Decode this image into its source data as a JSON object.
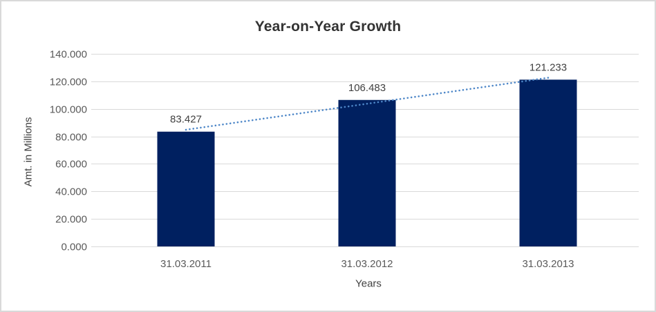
{
  "chart_data": {
    "type": "bar",
    "title": "Year-on-Year Growth",
    "xlabel": "Years",
    "ylabel": "Amt. in Millions",
    "categories": [
      "31.03.2011",
      "31.03.2012",
      "31.03.2013"
    ],
    "values": [
      83.427,
      106.483,
      121.233
    ],
    "data_labels": [
      "83.427",
      "106.483",
      "121.233"
    ],
    "ylim": [
      0,
      140
    ],
    "ytick_step": 20,
    "ytick_labels": [
      "0.000",
      "20.000",
      "40.000",
      "60.000",
      "80.000",
      "100.000",
      "120.000",
      "140.000"
    ],
    "grid": true,
    "legend": "none",
    "trendline": {
      "type": "linear",
      "style": "dotted"
    },
    "colors": {
      "bar": "#002060",
      "trendline": "#4e87c8",
      "gridline": "#d9d9d9",
      "axis_line": "#d9d9d9",
      "tick_label": "#595959",
      "axis_title": "#404040",
      "data_label": "#404040",
      "title": "#333333",
      "frame_border": "#d9d9d9",
      "background": "#ffffff"
    }
  }
}
